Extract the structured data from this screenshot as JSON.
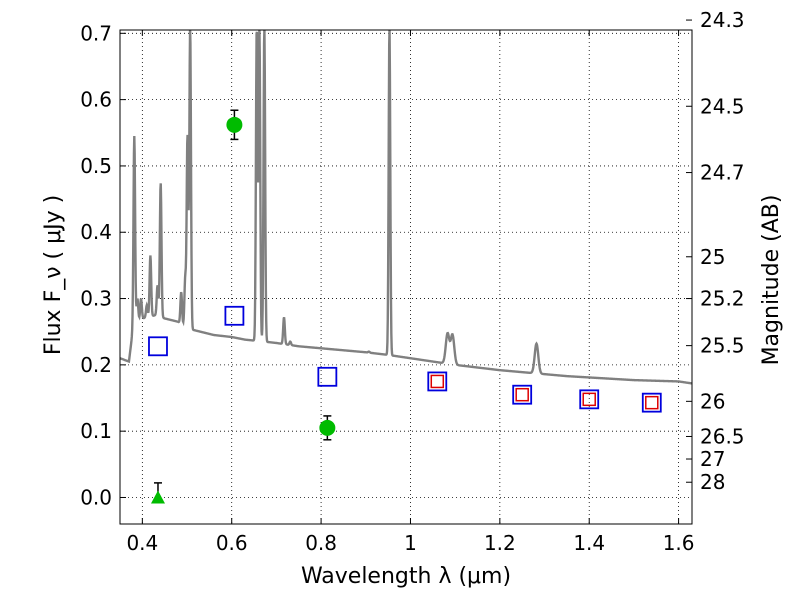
{
  "chart_data": {
    "type": "scatter",
    "xlabel": "Wavelength  λ (μm)",
    "ylabel": "Flux  F_ν  ( μJy )",
    "ylabel_right": "Magnitude (AB)",
    "xlim": [
      0.35,
      1.63
    ],
    "ylim": [
      -0.04,
      0.705
    ],
    "grid": true,
    "x_ticks": [
      {
        "value": 0.4,
        "label": "0.4"
      },
      {
        "value": 0.6,
        "label": "0.6"
      },
      {
        "value": 0.8,
        "label": "0.8"
      },
      {
        "value": 1.0,
        "label": "1"
      },
      {
        "value": 1.2,
        "label": "1.2"
      },
      {
        "value": 1.4,
        "label": "1.4"
      },
      {
        "value": 1.6,
        "label": "1.6"
      }
    ],
    "y_ticks": [
      {
        "value": 0.0,
        "label": "0.0"
      },
      {
        "value": 0.1,
        "label": "0.1"
      },
      {
        "value": 0.2,
        "label": "0.2"
      },
      {
        "value": 0.3,
        "label": "0.3"
      },
      {
        "value": 0.4,
        "label": "0.4"
      },
      {
        "value": 0.5,
        "label": "0.5"
      },
      {
        "value": 0.6,
        "label": "0.6"
      },
      {
        "value": 0.7,
        "label": "0.7"
      }
    ],
    "mag_ticks": [
      {
        "flux": 0.72,
        "label": "24.3"
      },
      {
        "flux": 0.59,
        "label": "24.5"
      },
      {
        "flux": 0.49,
        "label": "24.7"
      },
      {
        "flux": 0.363,
        "label": "25"
      },
      {
        "flux": 0.3,
        "label": "25.2"
      },
      {
        "flux": 0.229,
        "label": "25.5"
      },
      {
        "flux": 0.145,
        "label": "26"
      },
      {
        "flux": 0.092,
        "label": "26.5"
      },
      {
        "flux": 0.058,
        "label": "27"
      },
      {
        "flux": 0.023,
        "label": "28"
      }
    ],
    "colors": {
      "model": "#808080",
      "detection": "#00bb00",
      "blue_box": "#0000dd",
      "red_box": "#dd0000",
      "errorbar": "#000000"
    },
    "model_continuum": [
      [
        0.35,
        0.21
      ],
      [
        0.37,
        0.205
      ],
      [
        0.38,
        0.26
      ],
      [
        0.4,
        0.27
      ],
      [
        0.43,
        0.275
      ],
      [
        0.45,
        0.27
      ],
      [
        0.48,
        0.265
      ],
      [
        0.5,
        0.255
      ],
      [
        0.53,
        0.25
      ],
      [
        0.56,
        0.245
      ],
      [
        0.6,
        0.242
      ],
      [
        0.63,
        0.238
      ],
      [
        0.66,
        0.236
      ],
      [
        0.7,
        0.233
      ],
      [
        0.75,
        0.228
      ],
      [
        0.8,
        0.225
      ],
      [
        0.85,
        0.222
      ],
      [
        0.9,
        0.219
      ],
      [
        0.95,
        0.215
      ],
      [
        1.0,
        0.21
      ],
      [
        1.05,
        0.205
      ],
      [
        1.1,
        0.2
      ],
      [
        1.15,
        0.196
      ],
      [
        1.2,
        0.192
      ],
      [
        1.25,
        0.189
      ],
      [
        1.3,
        0.186
      ],
      [
        1.35,
        0.183
      ],
      [
        1.4,
        0.181
      ],
      [
        1.45,
        0.179
      ],
      [
        1.5,
        0.177
      ],
      [
        1.55,
        0.176
      ],
      [
        1.6,
        0.175
      ],
      [
        1.63,
        0.172
      ]
    ],
    "model_lines": [
      {
        "x": 0.382,
        "peak": 0.545
      },
      {
        "x": 0.389,
        "peak": 0.3
      },
      {
        "x": 0.397,
        "peak": 0.3
      },
      {
        "x": 0.41,
        "peak": 0.29
      },
      {
        "x": 0.418,
        "peak": 0.365
      },
      {
        "x": 0.434,
        "peak": 0.32
      },
      {
        "x": 0.441,
        "peak": 0.475
      },
      {
        "x": 0.487,
        "peak": 0.31
      },
      {
        "x": 0.496,
        "peak": 0.33
      },
      {
        "x": 0.501,
        "peak": 0.545
      },
      {
        "x": 0.507,
        "peak": 0.71
      },
      {
        "x": 0.656,
        "peak": 0.71
      },
      {
        "x": 0.662,
        "peak": 0.71
      },
      {
        "x": 0.673,
        "peak": 0.71
      },
      {
        "x": 0.717,
        "peak": 0.272
      },
      {
        "x": 0.731,
        "peak": 0.235
      },
      {
        "x": 0.907,
        "peak": 0.22
      },
      {
        "x": 0.953,
        "peak": 0.71
      },
      {
        "x": 1.083,
        "peak": 0.247
      },
      {
        "x": 1.094,
        "peak": 0.245
      },
      {
        "x": 1.282,
        "peak": 0.232
      }
    ],
    "series": [
      {
        "marker": "circle",
        "points": [
          {
            "x": 0.606,
            "y": 0.562,
            "err": 0.022
          },
          {
            "x": 0.814,
            "y": 0.105,
            "err": 0.018
          }
        ]
      },
      {
        "marker": "triangle",
        "points": [
          {
            "x": 0.435,
            "y": 0.0,
            "err_up": 0.022
          }
        ]
      },
      {
        "marker": "open-square",
        "points": [
          {
            "x": 0.435,
            "y": 0.228
          },
          {
            "x": 0.606,
            "y": 0.274
          },
          {
            "x": 0.814,
            "y": 0.182
          },
          {
            "x": 1.06,
            "y": 0.175
          },
          {
            "x": 1.25,
            "y": 0.155
          },
          {
            "x": 1.4,
            "y": 0.148
          },
          {
            "x": 1.54,
            "y": 0.143
          }
        ]
      },
      {
        "marker": "small-open-square",
        "points": [
          {
            "x": 1.06,
            "y": 0.175
          },
          {
            "x": 1.25,
            "y": 0.155
          },
          {
            "x": 1.4,
            "y": 0.148
          },
          {
            "x": 1.54,
            "y": 0.143
          }
        ]
      }
    ]
  }
}
